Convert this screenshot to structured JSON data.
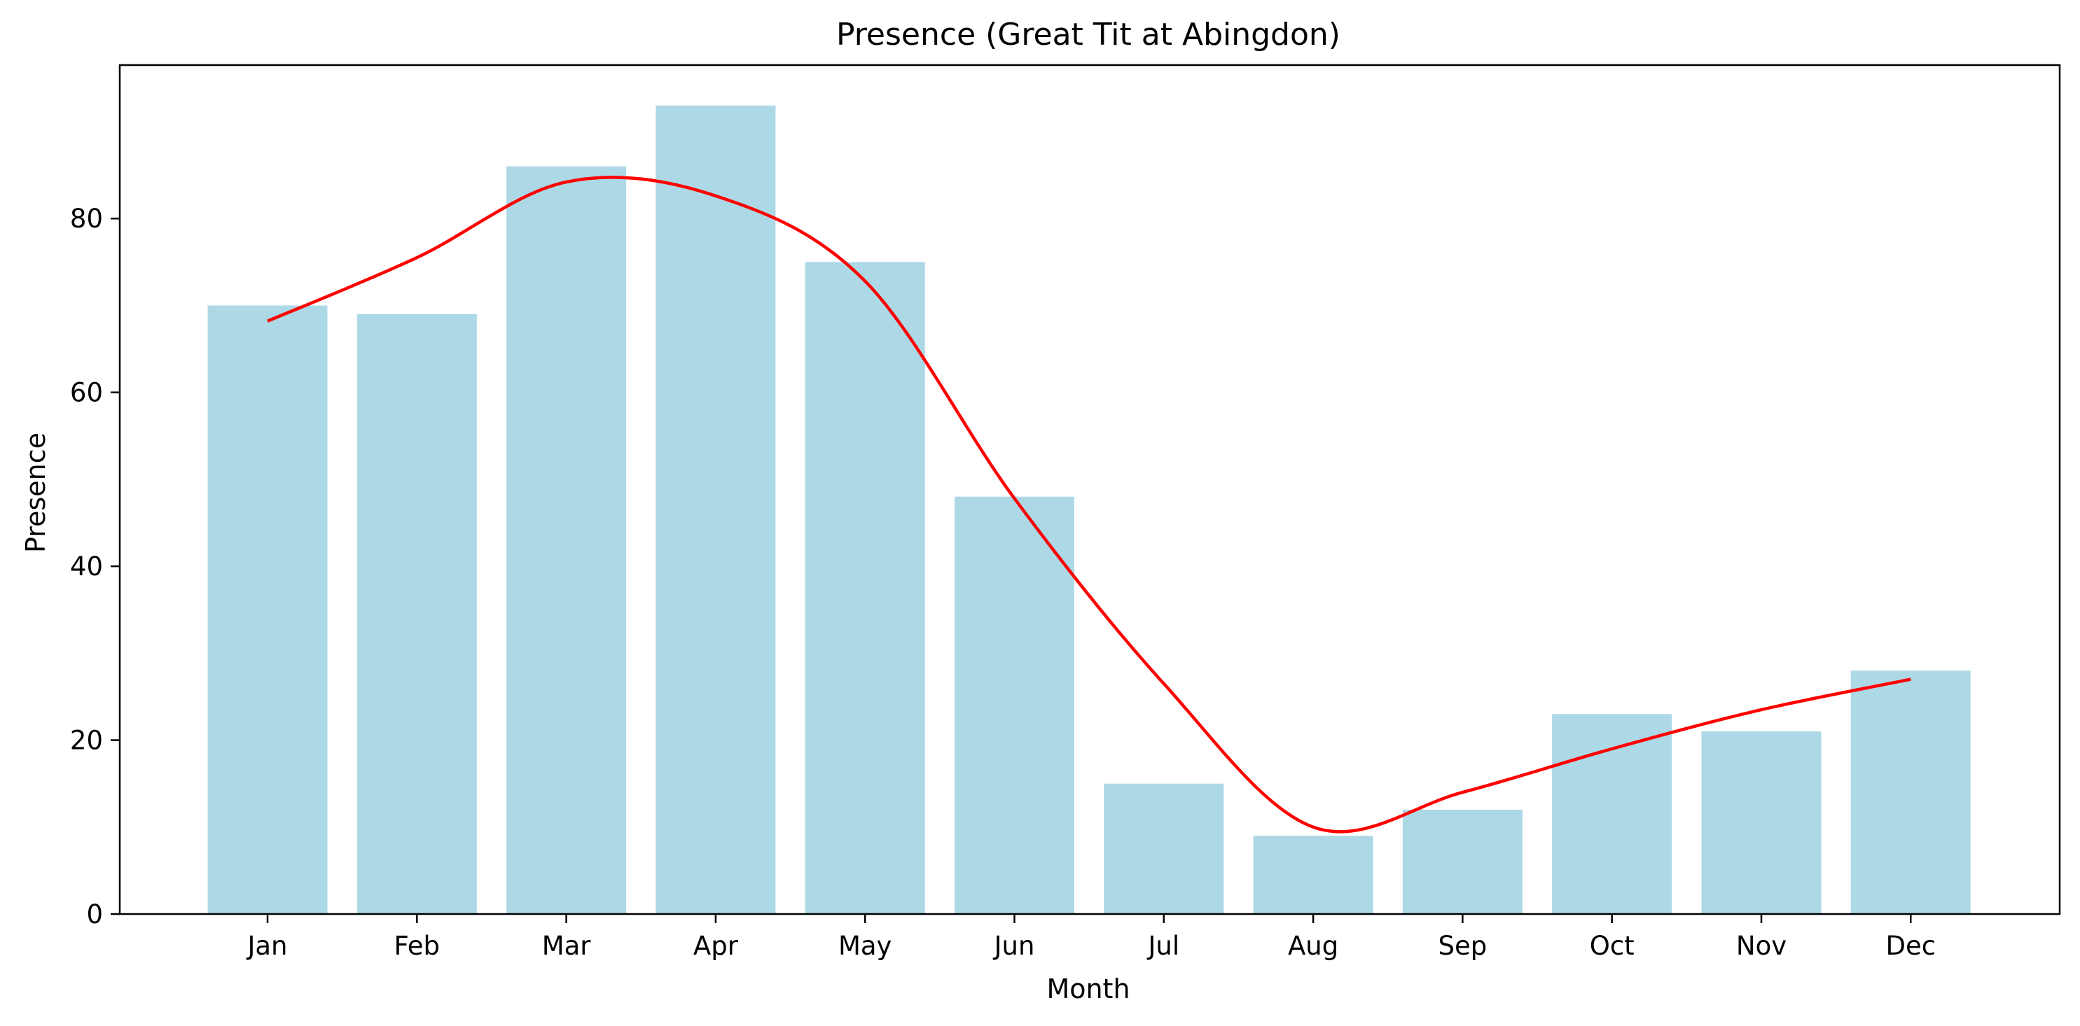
{
  "chart_data": {
    "type": "bar",
    "title": "Presence (Great Tit at Abingdon)",
    "xlabel": "Month",
    "ylabel": "Presence",
    "categories": [
      "Jan",
      "Feb",
      "Mar",
      "Apr",
      "May",
      "Jun",
      "Jul",
      "Aug",
      "Sep",
      "Oct",
      "Nov",
      "Dec"
    ],
    "values": [
      70,
      69,
      86,
      93,
      75,
      48,
      15,
      9,
      12,
      23,
      21,
      28
    ],
    "smooth_line": [
      68.2,
      75.5,
      84.2,
      82.6,
      72.8,
      47.8,
      26.5,
      10.0,
      14.0,
      19.0,
      23.5,
      27.0
    ],
    "ylim": [
      0,
      97.65
    ],
    "yticks": [
      0,
      20,
      40,
      60,
      80
    ],
    "grid": false,
    "legend": "none",
    "bar_color": "#add8e6",
    "line_color": "#ff0000"
  }
}
